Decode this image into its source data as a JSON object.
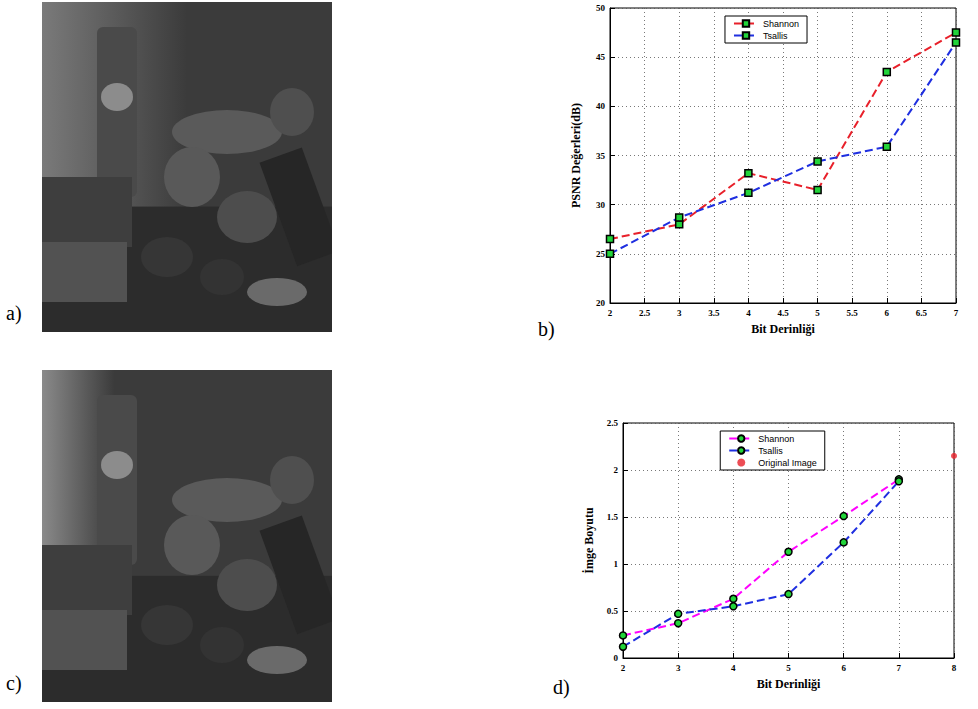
{
  "panel_labels": [
    "a)",
    "b)",
    "c)",
    "d)"
  ],
  "chart_data": [
    {
      "type": "line",
      "x_label": "Bit Derinliği",
      "y_label": "PSNR Değerleri(dB)",
      "xlim": [
        2,
        7
      ],
      "xticks": [
        2,
        2.5,
        3,
        3.5,
        4,
        4.5,
        5,
        5.5,
        6,
        6.5,
        7
      ],
      "ylim": [
        20,
        50
      ],
      "yticks": [
        20,
        25,
        30,
        35,
        40,
        45,
        50
      ],
      "grid": true,
      "legend": "top",
      "series": [
        {
          "name": "Shannon",
          "color": "#e8202a",
          "marker": "square",
          "line_style": "dashed",
          "x": [
            2,
            3,
            4,
            5,
            6,
            7
          ],
          "values": [
            26.5,
            28,
            33.2,
            31.5,
            43.5,
            47.5
          ]
        },
        {
          "name": "Tsallis",
          "color": "#1f2fe0",
          "marker": "square",
          "line_style": "dashed",
          "x": [
            2,
            3,
            4,
            5,
            6,
            7
          ],
          "values": [
            25,
            28.7,
            31.2,
            34.4,
            35.9,
            46.5
          ]
        }
      ]
    },
    {
      "type": "line",
      "x_label": "Bit Derinliği",
      "y_label": "İmge Boyutu",
      "xlim": [
        2,
        8
      ],
      "xticks": [
        2,
        3,
        4,
        5,
        6,
        7,
        8
      ],
      "ylim": [
        0,
        2.5
      ],
      "yticks": [
        0,
        0.5,
        1,
        1.5,
        2,
        2.5
      ],
      "grid": true,
      "legend": "top",
      "series": [
        {
          "name": "Shannon",
          "color": "#ff00ff",
          "marker": "circle",
          "line_style": "dashed",
          "x": [
            2,
            3,
            4,
            5,
            6,
            7
          ],
          "values": [
            0.24,
            0.37,
            0.63,
            1.13,
            1.51,
            1.9
          ]
        },
        {
          "name": "Tsallis",
          "color": "#1f2fe0",
          "marker": "circle",
          "line_style": "dashed",
          "x": [
            2,
            3,
            4,
            5,
            6,
            7
          ],
          "values": [
            0.12,
            0.47,
            0.55,
            0.68,
            1.23,
            1.88
          ]
        },
        {
          "name": "Original Image",
          "color": "#e8202a",
          "marker": "circle",
          "type": "scatter",
          "x": [
            8
          ],
          "values": [
            2.15
          ]
        }
      ]
    }
  ]
}
